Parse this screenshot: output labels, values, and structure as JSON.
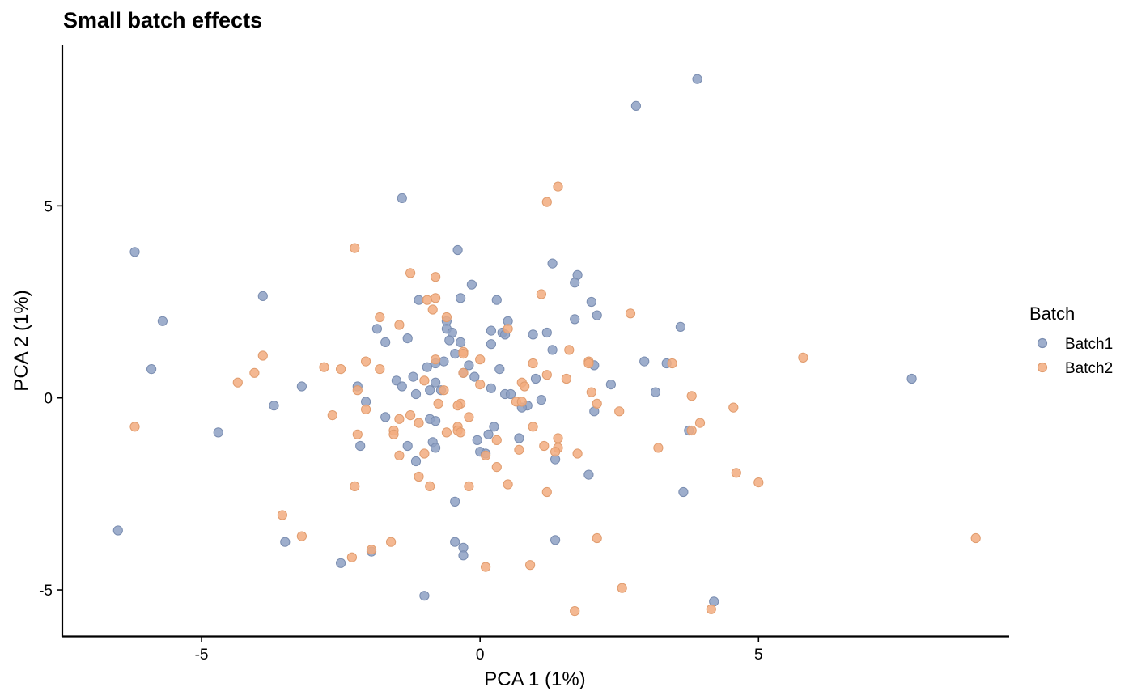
{
  "chart_data": {
    "type": "scatter",
    "title": "Small batch effects",
    "xlabel": "PCA 1 (1%)",
    "ylabel": "PCA 2 (1%)",
    "xlim": [
      -7.5,
      9.5
    ],
    "ylim": [
      -6.2,
      9.2
    ],
    "xticks": [
      -5,
      0,
      5
    ],
    "yticks": [
      -5,
      0,
      5
    ],
    "grid": false,
    "legend": {
      "title": "Batch",
      "position": "right"
    },
    "series": [
      {
        "name": "Batch1",
        "color": "#8DA0C3",
        "points": [
          [
            3.9,
            8.3
          ],
          [
            2.8,
            7.6
          ],
          [
            -1.4,
            5.2
          ],
          [
            -6.2,
            3.8
          ],
          [
            -0.4,
            3.85
          ],
          [
            -5.7,
            2.0
          ],
          [
            -5.9,
            0.75
          ],
          [
            -3.9,
            2.65
          ],
          [
            -3.2,
            0.3
          ],
          [
            -3.7,
            -0.2
          ],
          [
            -4.7,
            -0.9
          ],
          [
            -6.5,
            -3.45
          ],
          [
            -3.5,
            -3.75
          ],
          [
            -2.5,
            -4.3
          ],
          [
            -1.95,
            -4.0
          ],
          [
            -1.0,
            -5.15
          ],
          [
            -0.3,
            -3.9
          ],
          [
            -0.3,
            -4.1
          ],
          [
            -0.45,
            -3.75
          ],
          [
            -0.45,
            -2.7
          ],
          [
            1.35,
            -3.7
          ],
          [
            4.2,
            -5.3
          ],
          [
            1.3,
            3.5
          ],
          [
            1.75,
            3.2
          ],
          [
            1.7,
            3.0
          ],
          [
            -0.15,
            2.95
          ],
          [
            -0.35,
            2.6
          ],
          [
            0.3,
            2.55
          ],
          [
            -1.1,
            2.55
          ],
          [
            2.0,
            2.5
          ],
          [
            2.1,
            2.15
          ],
          [
            0.5,
            2.0
          ],
          [
            1.7,
            2.05
          ],
          [
            -0.6,
            2.0
          ],
          [
            -0.6,
            1.8
          ],
          [
            -1.85,
            1.8
          ],
          [
            0.4,
            1.7
          ],
          [
            0.45,
            1.65
          ],
          [
            0.95,
            1.65
          ],
          [
            1.2,
            1.7
          ],
          [
            -0.5,
            1.7
          ],
          [
            0.2,
            1.75
          ],
          [
            -1.3,
            1.55
          ],
          [
            -1.7,
            1.45
          ],
          [
            -0.55,
            1.5
          ],
          [
            -0.35,
            1.45
          ],
          [
            0.2,
            1.4
          ],
          [
            -0.45,
            1.15
          ],
          [
            -0.65,
            0.95
          ],
          [
            -0.2,
            0.85
          ],
          [
            1.3,
            1.25
          ],
          [
            2.05,
            0.85
          ],
          [
            2.95,
            0.95
          ],
          [
            3.35,
            0.9
          ],
          [
            3.6,
            1.85
          ],
          [
            0.35,
            0.75
          ],
          [
            -0.8,
            0.9
          ],
          [
            -0.95,
            0.8
          ],
          [
            -0.3,
            0.65
          ],
          [
            -0.1,
            0.55
          ],
          [
            -1.2,
            0.55
          ],
          [
            -1.5,
            0.45
          ],
          [
            -1.4,
            0.3
          ],
          [
            -0.8,
            0.4
          ],
          [
            -2.2,
            0.3
          ],
          [
            -0.9,
            0.2
          ],
          [
            -0.7,
            0.2
          ],
          [
            0.2,
            0.25
          ],
          [
            1.0,
            0.5
          ],
          [
            2.35,
            0.35
          ],
          [
            3.15,
            0.15
          ],
          [
            0.45,
            0.1
          ],
          [
            0.55,
            0.1
          ],
          [
            1.1,
            -0.05
          ],
          [
            0.85,
            -0.2
          ],
          [
            0.75,
            -0.25
          ],
          [
            -1.15,
            0.1
          ],
          [
            -1.7,
            -0.5
          ],
          [
            -2.05,
            -0.1
          ],
          [
            -0.9,
            -0.55
          ],
          [
            -0.8,
            -0.6
          ],
          [
            2.05,
            -0.35
          ],
          [
            3.75,
            -0.85
          ],
          [
            0.25,
            -0.75
          ],
          [
            0.15,
            -0.95
          ],
          [
            -0.05,
            -1.1
          ],
          [
            -0.85,
            -1.15
          ],
          [
            -0.8,
            -1.3
          ],
          [
            -1.3,
            -1.25
          ],
          [
            -2.15,
            -1.25
          ],
          [
            -1.15,
            -1.65
          ],
          [
            0.0,
            -1.4
          ],
          [
            0.1,
            -1.45
          ],
          [
            0.7,
            -1.05
          ],
          [
            1.35,
            -1.6
          ],
          [
            1.95,
            -2.0
          ],
          [
            3.65,
            -2.45
          ],
          [
            7.75,
            0.5
          ]
        ]
      },
      {
        "name": "Batch2",
        "color": "#F2AC7F",
        "points": [
          [
            1.4,
            5.5
          ],
          [
            1.2,
            5.1
          ],
          [
            -2.25,
            3.9
          ],
          [
            -1.25,
            3.25
          ],
          [
            -0.8,
            3.15
          ],
          [
            -0.8,
            2.6
          ],
          [
            -0.95,
            2.55
          ],
          [
            1.1,
            2.7
          ],
          [
            -0.85,
            2.3
          ],
          [
            -1.8,
            2.1
          ],
          [
            -0.6,
            2.1
          ],
          [
            2.7,
            2.2
          ],
          [
            0.5,
            1.8
          ],
          [
            1.6,
            1.25
          ],
          [
            -1.45,
            1.9
          ],
          [
            -0.3,
            1.2
          ],
          [
            -0.3,
            1.15
          ],
          [
            -3.9,
            1.1
          ],
          [
            -2.05,
            0.95
          ],
          [
            -0.8,
            1.0
          ],
          [
            0.0,
            1.0
          ],
          [
            0.95,
            0.9
          ],
          [
            1.95,
            0.95
          ],
          [
            1.95,
            0.9
          ],
          [
            3.45,
            0.9
          ],
          [
            5.8,
            1.05
          ],
          [
            -2.8,
            0.8
          ],
          [
            -2.5,
            0.75
          ],
          [
            -1.8,
            0.75
          ],
          [
            -0.3,
            0.65
          ],
          [
            -4.05,
            0.65
          ],
          [
            1.2,
            0.6
          ],
          [
            -4.35,
            0.4
          ],
          [
            -1.0,
            0.45
          ],
          [
            0.0,
            0.35
          ],
          [
            1.55,
            0.5
          ],
          [
            0.75,
            0.4
          ],
          [
            0.8,
            0.3
          ],
          [
            -2.2,
            0.2
          ],
          [
            -0.65,
            0.2
          ],
          [
            2.0,
            0.15
          ],
          [
            3.8,
            0.05
          ],
          [
            0.65,
            -0.1
          ],
          [
            0.75,
            -0.1
          ],
          [
            -0.35,
            -0.15
          ],
          [
            -0.4,
            -0.2
          ],
          [
            -0.75,
            -0.15
          ],
          [
            2.1,
            -0.15
          ],
          [
            -2.05,
            -0.3
          ],
          [
            4.55,
            -0.25
          ],
          [
            -2.65,
            -0.45
          ],
          [
            -1.25,
            -0.45
          ],
          [
            -1.45,
            -0.55
          ],
          [
            -1.1,
            -0.65
          ],
          [
            -0.4,
            -0.75
          ],
          [
            -0.4,
            -0.85
          ],
          [
            -0.35,
            -0.9
          ],
          [
            -0.6,
            -0.9
          ],
          [
            -0.2,
            -0.5
          ],
          [
            0.95,
            -0.75
          ],
          [
            2.5,
            -0.35
          ],
          [
            3.95,
            -0.65
          ],
          [
            3.8,
            -0.85
          ],
          [
            -2.2,
            -0.95
          ],
          [
            -1.55,
            -0.85
          ],
          [
            -1.55,
            -0.95
          ],
          [
            0.3,
            -1.1
          ],
          [
            1.4,
            -1.05
          ],
          [
            1.15,
            -1.25
          ],
          [
            3.2,
            -1.3
          ],
          [
            1.4,
            -1.3
          ],
          [
            1.35,
            -1.4
          ],
          [
            -1.0,
            -1.45
          ],
          [
            -1.45,
            -1.5
          ],
          [
            0.1,
            -1.5
          ],
          [
            0.7,
            -1.35
          ],
          [
            1.75,
            -1.45
          ],
          [
            0.3,
            -1.8
          ],
          [
            -1.1,
            -2.05
          ],
          [
            -0.9,
            -2.3
          ],
          [
            -0.2,
            -2.3
          ],
          [
            0.5,
            -2.25
          ],
          [
            1.2,
            -2.45
          ],
          [
            4.6,
            -1.95
          ],
          [
            5.0,
            -2.2
          ],
          [
            -2.25,
            -2.3
          ],
          [
            -3.55,
            -3.05
          ],
          [
            -3.2,
            -3.6
          ],
          [
            -1.6,
            -3.75
          ],
          [
            -1.95,
            -3.95
          ],
          [
            -2.3,
            -4.15
          ],
          [
            0.9,
            -4.35
          ],
          [
            0.1,
            -4.4
          ],
          [
            2.1,
            -3.65
          ],
          [
            2.55,
            -4.95
          ],
          [
            1.7,
            -5.55
          ],
          [
            4.15,
            -5.5
          ],
          [
            8.9,
            -3.65
          ],
          [
            -6.2,
            -0.75
          ]
        ]
      }
    ]
  }
}
